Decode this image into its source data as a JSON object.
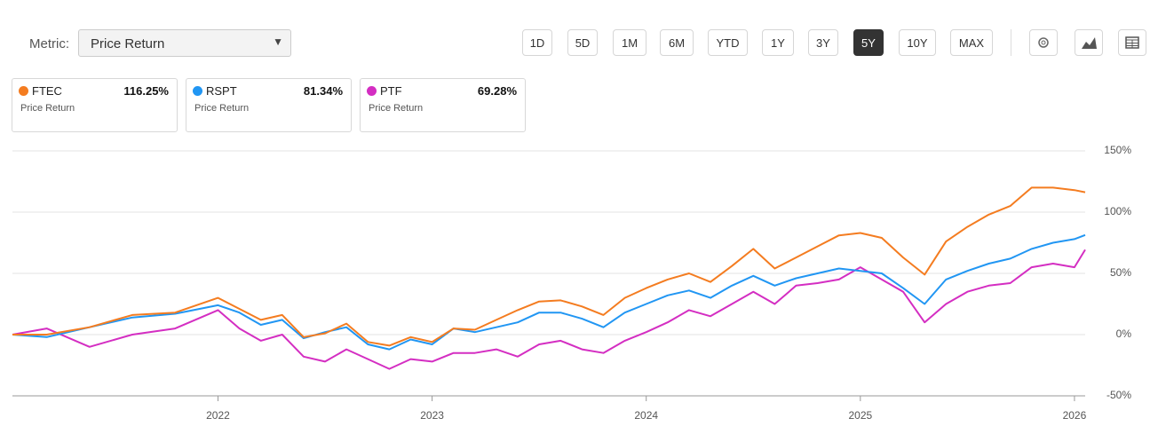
{
  "toolbar": {
    "metric_label": "Metric:",
    "metric_value": "Price Return",
    "ranges": [
      "1D",
      "5D",
      "1M",
      "6M",
      "YTD",
      "1Y",
      "3Y",
      "5Y",
      "10Y",
      "MAX"
    ],
    "active_range": "5Y"
  },
  "cards": [
    {
      "metric": "Price Return",
      "change": "116.25%"
    },
    {
      "metric": "Price Return",
      "change": "81.34%"
    },
    {
      "metric": "Price Return",
      "change": "69.28%"
    }
  ],
  "chart_data": {
    "type": "line",
    "x": [
      2021.04,
      2021.2,
      2021.4,
      2021.6,
      2021.8,
      2022.0,
      2022.1,
      2022.2,
      2022.3,
      2022.4,
      2022.5,
      2022.6,
      2022.7,
      2022.8,
      2022.9,
      2023.0,
      2023.1,
      2023.2,
      2023.3,
      2023.4,
      2023.5,
      2023.6,
      2023.7,
      2023.8,
      2023.9,
      2024.0,
      2024.1,
      2024.2,
      2024.3,
      2024.4,
      2024.5,
      2024.6,
      2024.7,
      2024.8,
      2024.9,
      2025.0,
      2025.1,
      2025.2,
      2025.3,
      2025.4,
      2025.5,
      2025.6,
      2025.7,
      2025.8,
      2025.9,
      2026.0,
      2026.05
    ],
    "series": [
      {
        "name": "FTEC",
        "color": "#f47c20",
        "values": [
          0,
          0,
          6,
          16,
          18,
          30,
          21,
          12,
          16,
          -2,
          1,
          9,
          -6,
          -9,
          -2,
          -6,
          5,
          4,
          12,
          20,
          27,
          28,
          23,
          16,
          30,
          38,
          45,
          50,
          43,
          56,
          70,
          54,
          63,
          72,
          81,
          83,
          79,
          63,
          49,
          76,
          88,
          98,
          105,
          120,
          120,
          118,
          116.25
        ]
      },
      {
        "name": "RSPT",
        "color": "#2196f3",
        "values": [
          0,
          -2,
          6,
          14,
          17,
          24,
          18,
          8,
          12,
          -3,
          2,
          6,
          -8,
          -12,
          -4,
          -8,
          5,
          2,
          6,
          10,
          18,
          18,
          13,
          6,
          18,
          25,
          32,
          36,
          30,
          40,
          48,
          40,
          46,
          50,
          54,
          52,
          50,
          38,
          25,
          45,
          52,
          58,
          62,
          70,
          75,
          78,
          81.34
        ]
      },
      {
        "name": "PTF",
        "color": "#d42ec2",
        "values": [
          0,
          5,
          -10,
          0,
          5,
          20,
          5,
          -5,
          0,
          -18,
          -22,
          -12,
          -20,
          -28,
          -20,
          -22,
          -15,
          -15,
          -12,
          -18,
          -8,
          -5,
          -12,
          -15,
          -5,
          2,
          10,
          20,
          15,
          25,
          35,
          25,
          40,
          42,
          45,
          55,
          45,
          35,
          10,
          25,
          35,
          40,
          42,
          55,
          58,
          55,
          69.28
        ]
      }
    ],
    "xlim": [
      2021.04,
      2026.05
    ],
    "xticks": [
      2022,
      2023,
      2024,
      2025,
      2026
    ],
    "ylim": [
      -50,
      150
    ],
    "yticks": [
      {
        "value": -50,
        "label": "-50%"
      },
      {
        "value": 0,
        "label": "0%"
      },
      {
        "value": 50,
        "label": "50%"
      },
      {
        "value": 100,
        "label": "100%"
      },
      {
        "value": 150,
        "label": "150%"
      }
    ],
    "grid": true
  }
}
